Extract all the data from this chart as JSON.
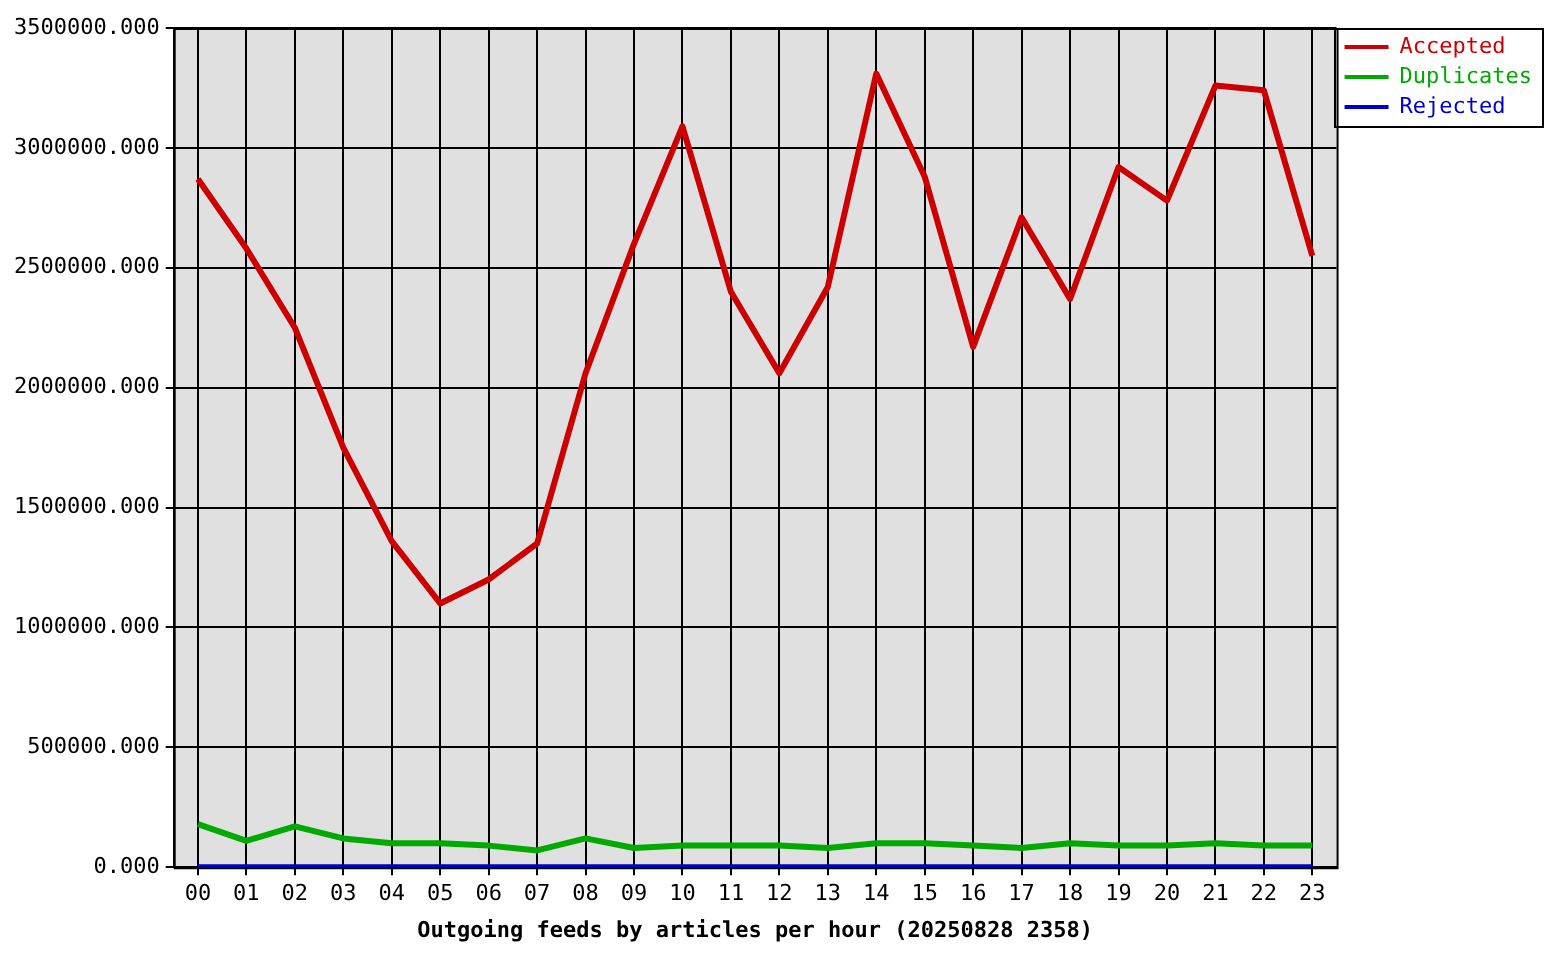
{
  "chart_data": {
    "type": "line",
    "xlabel": "Outgoing feeds by articles per hour (20250828 2358)",
    "categories": [
      "00",
      "01",
      "02",
      "03",
      "04",
      "05",
      "06",
      "07",
      "08",
      "09",
      "10",
      "11",
      "12",
      "13",
      "14",
      "15",
      "16",
      "17",
      "18",
      "19",
      "20",
      "21",
      "22",
      "23"
    ],
    "series": [
      {
        "name": "Accepted",
        "color": "#cc0000",
        "values": [
          2870000,
          2580000,
          2250000,
          1750000,
          1360000,
          1100000,
          1200000,
          1350000,
          2060000,
          2600000,
          3090000,
          2400000,
          2060000,
          2420000,
          3310000,
          2880000,
          2170000,
          2710000,
          2370000,
          2920000,
          2780000,
          3260000,
          3240000,
          2550000
        ]
      },
      {
        "name": "Duplicates",
        "color": "#00aa00",
        "values": [
          180000,
          110000,
          170000,
          120000,
          100000,
          100000,
          90000,
          70000,
          120000,
          80000,
          90000,
          90000,
          90000,
          80000,
          100000,
          100000,
          90000,
          80000,
          100000,
          90000,
          90000,
          100000,
          90000,
          90000
        ]
      },
      {
        "name": "Rejected",
        "color": "#0000cc",
        "values": [
          0,
          0,
          0,
          0,
          0,
          0,
          0,
          0,
          0,
          0,
          0,
          0,
          0,
          0,
          0,
          0,
          0,
          0,
          0,
          0,
          0,
          0,
          0,
          0
        ]
      }
    ],
    "ylim": [
      0,
      3500000
    ],
    "yticks": [
      {
        "value": 0,
        "label": "0.000"
      },
      {
        "value": 500000,
        "label": "500000.000"
      },
      {
        "value": 1000000,
        "label": "1000000.000"
      },
      {
        "value": 1500000,
        "label": "1500000.000"
      },
      {
        "value": 2000000,
        "label": "2000000.000"
      },
      {
        "value": 2500000,
        "label": "2500000.000"
      },
      {
        "value": 3000000,
        "label": "3000000.000"
      },
      {
        "value": 3500000,
        "label": "3500000.000"
      }
    ],
    "grid": true,
    "legend": "top right",
    "marker": "none",
    "line_style": "solid"
  }
}
